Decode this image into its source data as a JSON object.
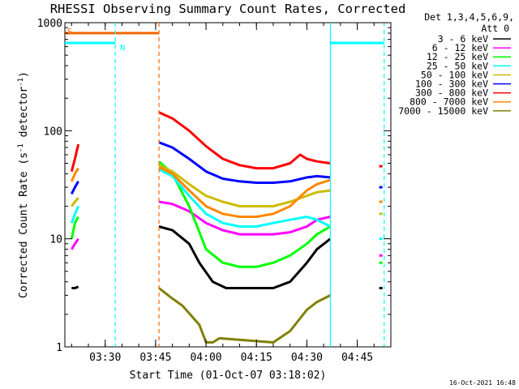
{
  "chart_data": {
    "type": "line",
    "title": "RHESSI Observing Summary Count Rates, Corrected",
    "xlabel": "Start Time (01-Oct-07 03:18:02)",
    "ylabel": "Corrected Count Rate (s⁻¹ detector⁻¹)",
    "ylabel_main": "Corrected Count Rate (s",
    "ylabel_sup1": "-1",
    "ylabel_mid": " detector",
    "ylabel_sup2": "-1",
    "ylabel_end": ")",
    "y_scale": "log",
    "ylim": [
      1,
      1000
    ],
    "xlim": [
      "03:18",
      "04:55"
    ],
    "x_ticks": [
      "03:30",
      "03:45",
      "04:00",
      "04:15",
      "04:30",
      "04:45"
    ],
    "y_ticks": [
      "1",
      "10",
      "100",
      "1000"
    ],
    "timestamp": "16-Oct-2021 16:48",
    "legend_position": "right",
    "legend_header": [
      "Det 1,3,4,5,6,9,",
      "Att 0"
    ],
    "series": [
      {
        "name": "3 - 6 keV",
        "color": "#000000",
        "points": [
          [
            "03:20",
            3.5
          ],
          [
            "03:21",
            3.5
          ],
          [
            "03:22",
            3.6
          ],
          [
            "03:46",
            13
          ],
          [
            "03:50",
            12
          ],
          [
            "03:55",
            9
          ],
          [
            "03:58",
            6
          ],
          [
            "04:02",
            4
          ],
          [
            "04:06",
            3.5
          ],
          [
            "04:10",
            3.5
          ],
          [
            "04:15",
            3.5
          ],
          [
            "04:20",
            3.5
          ],
          [
            "04:25",
            4
          ],
          [
            "04:30",
            6
          ],
          [
            "04:33",
            8
          ],
          [
            "04:37",
            10
          ],
          [
            "04:52",
            3.5
          ]
        ]
      },
      {
        "name": "6 - 12 keV",
        "color": "#ff00ff",
        "points": [
          [
            "03:20",
            8
          ],
          [
            "03:21",
            9
          ],
          [
            "03:22",
            10
          ],
          [
            "03:46",
            22
          ],
          [
            "03:50",
            21
          ],
          [
            "03:55",
            18
          ],
          [
            "04:00",
            14
          ],
          [
            "04:05",
            12
          ],
          [
            "04:10",
            11
          ],
          [
            "04:15",
            11
          ],
          [
            "04:20",
            11
          ],
          [
            "04:25",
            11.5
          ],
          [
            "04:30",
            13
          ],
          [
            "04:33",
            15
          ],
          [
            "04:37",
            16
          ],
          [
            "04:52",
            7
          ]
        ]
      },
      {
        "name": "12 - 25 keV",
        "color": "#00ff00",
        "points": [
          [
            "03:20",
            10
          ],
          [
            "03:21",
            14
          ],
          [
            "03:22",
            16
          ],
          [
            "03:46",
            52
          ],
          [
            "03:50",
            40
          ],
          [
            "03:55",
            20
          ],
          [
            "04:00",
            8
          ],
          [
            "04:05",
            6
          ],
          [
            "04:10",
            5.5
          ],
          [
            "04:15",
            5.5
          ],
          [
            "04:20",
            6
          ],
          [
            "04:25",
            7
          ],
          [
            "04:30",
            9
          ],
          [
            "04:33",
            11
          ],
          [
            "04:37",
            13
          ],
          [
            "04:52",
            6
          ]
        ]
      },
      {
        "name": "25 - 50 keV",
        "color": "#00ffff",
        "points": [
          [
            "03:20",
            14
          ],
          [
            "03:21",
            17
          ],
          [
            "03:22",
            20
          ],
          [
            "03:46",
            44
          ],
          [
            "03:50",
            38
          ],
          [
            "03:55",
            25
          ],
          [
            "04:00",
            17
          ],
          [
            "04:05",
            14
          ],
          [
            "04:10",
            13
          ],
          [
            "04:15",
            13
          ],
          [
            "04:20",
            14
          ],
          [
            "04:25",
            15
          ],
          [
            "04:30",
            16
          ],
          [
            "04:33",
            15
          ],
          [
            "04:37",
            13
          ],
          [
            "04:52",
            10
          ]
        ]
      },
      {
        "name": "50 - 100 keV",
        "color": "#ccbb00",
        "points": [
          [
            "03:20",
            20
          ],
          [
            "03:21",
            22
          ],
          [
            "03:22",
            24
          ],
          [
            "03:46",
            48
          ],
          [
            "03:50",
            42
          ],
          [
            "03:55",
            32
          ],
          [
            "04:00",
            25
          ],
          [
            "04:05",
            22
          ],
          [
            "04:10",
            20
          ],
          [
            "04:15",
            20
          ],
          [
            "04:20",
            20
          ],
          [
            "04:25",
            22
          ],
          [
            "04:30",
            25
          ],
          [
            "04:33",
            27
          ],
          [
            "04:37",
            28
          ],
          [
            "04:52",
            17
          ]
        ]
      },
      {
        "name": "100 - 300 keV",
        "color": "#0000ff",
        "points": [
          [
            "03:20",
            26
          ],
          [
            "03:21",
            30
          ],
          [
            "03:22",
            34
          ],
          [
            "03:46",
            78
          ],
          [
            "03:50",
            70
          ],
          [
            "03:55",
            55
          ],
          [
            "04:00",
            42
          ],
          [
            "04:05",
            36
          ],
          [
            "04:10",
            34
          ],
          [
            "04:15",
            33
          ],
          [
            "04:20",
            33
          ],
          [
            "04:25",
            34
          ],
          [
            "04:30",
            37
          ],
          [
            "04:33",
            38
          ],
          [
            "04:37",
            37
          ],
          [
            "04:52",
            30
          ]
        ]
      },
      {
        "name": "300 - 800 keV",
        "color": "#ff0000",
        "points": [
          [
            "03:20",
            42
          ],
          [
            "03:21",
            55
          ],
          [
            "03:22",
            75
          ],
          [
            "03:46",
            148
          ],
          [
            "03:50",
            130
          ],
          [
            "03:55",
            100
          ],
          [
            "04:00",
            72
          ],
          [
            "04:05",
            55
          ],
          [
            "04:10",
            48
          ],
          [
            "04:15",
            45
          ],
          [
            "04:20",
            45
          ],
          [
            "04:25",
            50
          ],
          [
            "04:28",
            60
          ],
          [
            "04:30",
            55
          ],
          [
            "04:33",
            52
          ],
          [
            "04:37",
            50
          ],
          [
            "04:52",
            47
          ]
        ]
      },
      {
        "name": "800 - 7000 keV",
        "color": "#ff8800",
        "points": [
          [
            "03:20",
            34
          ],
          [
            "03:21",
            40
          ],
          [
            "03:22",
            45
          ],
          [
            "03:46",
            46
          ],
          [
            "03:50",
            40
          ],
          [
            "03:55",
            28
          ],
          [
            "04:00",
            20
          ],
          [
            "04:05",
            17
          ],
          [
            "04:10",
            16
          ],
          [
            "04:15",
            16
          ],
          [
            "04:20",
            17
          ],
          [
            "04:25",
            20
          ],
          [
            "04:30",
            28
          ],
          [
            "04:33",
            32
          ],
          [
            "04:37",
            35
          ],
          [
            "04:52",
            22
          ]
        ]
      },
      {
        "name": "7000 - 15000 keV",
        "color": "#808000",
        "points": [
          [
            "03:46",
            3.5
          ],
          [
            "03:50",
            2.8
          ],
          [
            "03:53",
            2.4
          ],
          [
            "03:58",
            1.6
          ],
          [
            "04:00",
            1.1
          ],
          [
            "04:02",
            1.1
          ],
          [
            "04:04",
            1.2
          ],
          [
            "04:20",
            1.1
          ],
          [
            "04:25",
            1.4
          ],
          [
            "04:30",
            2.2
          ],
          [
            "04:33",
            2.6
          ],
          [
            "04:37",
            3.0
          ]
        ]
      }
    ],
    "attenuator_flag": {
      "label": "S",
      "color": "#ff6600",
      "level": 800,
      "start": "03:18",
      "end": "03:46"
    },
    "night_flag": {
      "label": "N",
      "color": "#00ffff",
      "level": 650,
      "intervals": [
        [
          "03:18",
          "03:33"
        ],
        [
          "04:37",
          "04:53"
        ]
      ]
    },
    "vertical_markers": [
      {
        "time": "03:46",
        "color": "#ff6600",
        "style": "dashed"
      },
      {
        "time": "03:33",
        "color": "#00ffff",
        "style": "dashed"
      },
      {
        "time": "04:53",
        "color": "#00ffff",
        "style": "dashed"
      },
      {
        "time": "04:37",
        "color": "#00ffff",
        "style": "solid"
      }
    ]
  }
}
